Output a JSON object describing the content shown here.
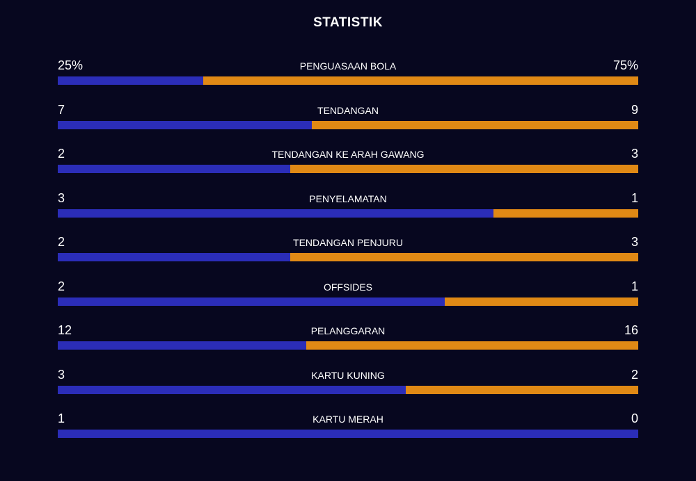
{
  "title": "STATISTIK",
  "home_color": "#2b2db8",
  "away_color": "#e08915",
  "stats": [
    {
      "label": "PENGUASAAN BOLA",
      "home": {
        "value": 25,
        "label": "25%"
      },
      "away": {
        "value": 75,
        "label": "75%"
      }
    },
    {
      "label": "TENDANGAN",
      "home": 7,
      "away": 9
    },
    {
      "label": "TENDANGAN KE ARAH GAWANG",
      "home": 2,
      "away": 3
    },
    {
      "label": "PENYELAMATAN",
      "home": 3,
      "away": 1
    },
    {
      "label": "TENDANGAN PENJURU",
      "home": 2,
      "away": 3
    },
    {
      "label": "OFFSIDES",
      "home": 2,
      "away": 1
    },
    {
      "label": "PELANGGARAN",
      "home": 12,
      "away": 16
    },
    {
      "label": "KARTU KUNING",
      "home": 3,
      "away": 2
    },
    {
      "label": "KARTU MERAH",
      "home": 1,
      "away": 0
    }
  ]
}
